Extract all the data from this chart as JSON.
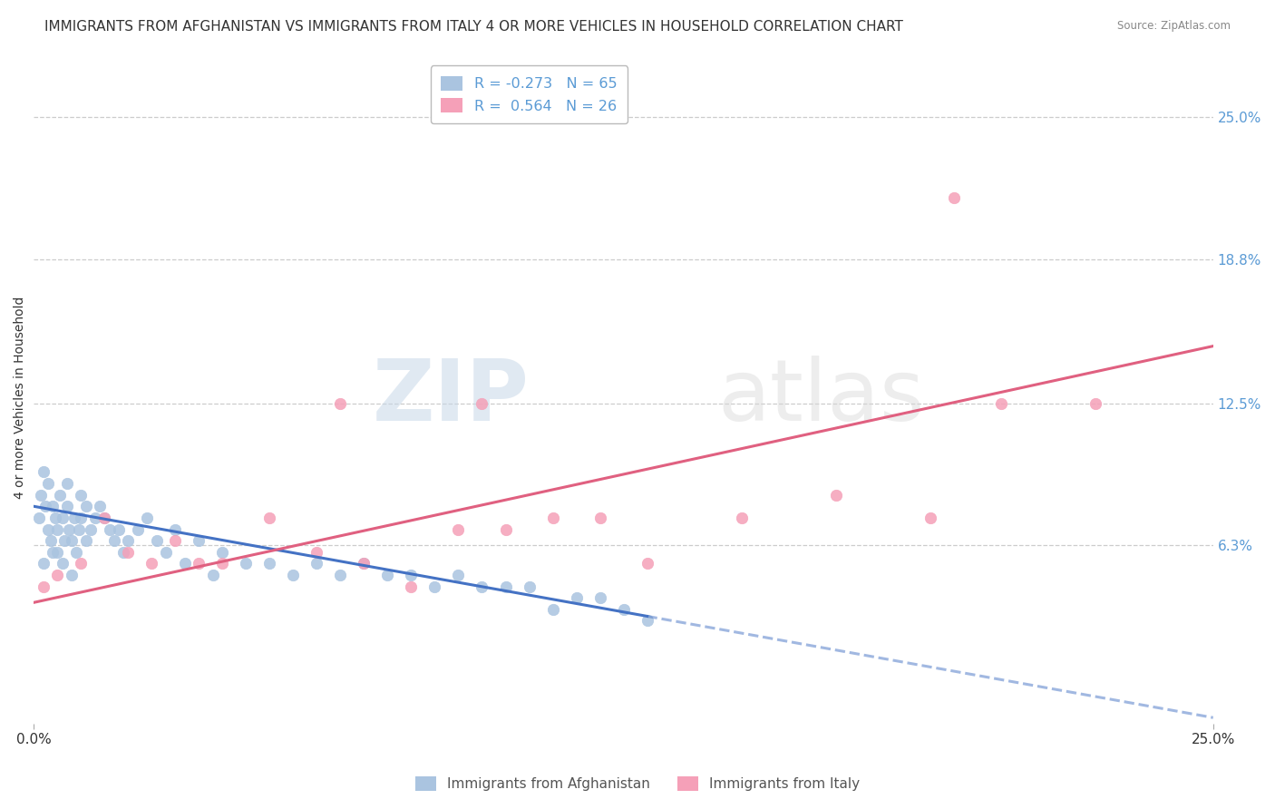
{
  "title": "IMMIGRANTS FROM AFGHANISTAN VS IMMIGRANTS FROM ITALY 4 OR MORE VEHICLES IN HOUSEHOLD CORRELATION CHART",
  "source": "Source: ZipAtlas.com",
  "ylabel": "4 or more Vehicles in Household",
  "xlim": [
    0.0,
    25.0
  ],
  "ylim": [
    -1.5,
    27.0
  ],
  "xticks": [
    0.0,
    25.0
  ],
  "xticklabels": [
    "0.0%",
    "25.0%"
  ],
  "ytick_labels_right": [
    "25.0%",
    "18.8%",
    "12.5%",
    "6.3%"
  ],
  "ytick_values_right": [
    25.0,
    18.8,
    12.5,
    6.3
  ],
  "afghanistan_color": "#aac4e0",
  "italy_color": "#f5a0b8",
  "afghanistan_line_color": "#4472c4",
  "italy_line_color": "#e06080",
  "R_afghanistan": -0.273,
  "N_afghanistan": 65,
  "R_italy": 0.564,
  "N_italy": 26,
  "watermark_zip": "ZIP",
  "watermark_atlas": "atlas",
  "legend_afghanistan": "Immigrants from Afghanistan",
  "legend_italy": "Immigrants from Italy",
  "afghanistan_x": [
    0.1,
    0.15,
    0.2,
    0.25,
    0.3,
    0.3,
    0.35,
    0.4,
    0.45,
    0.5,
    0.5,
    0.55,
    0.6,
    0.65,
    0.7,
    0.7,
    0.75,
    0.8,
    0.85,
    0.9,
    0.95,
    1.0,
    1.0,
    1.1,
    1.1,
    1.2,
    1.3,
    1.4,
    1.5,
    1.6,
    1.7,
    1.8,
    1.9,
    2.0,
    2.2,
    2.4,
    2.6,
    2.8,
    3.0,
    3.2,
    3.5,
    3.8,
    4.0,
    4.5,
    5.0,
    5.5,
    6.0,
    6.5,
    7.0,
    7.5,
    8.0,
    8.5,
    9.0,
    9.5,
    10.0,
    10.5,
    11.0,
    11.5,
    12.0,
    12.5,
    13.0,
    0.2,
    0.4,
    0.6,
    0.8
  ],
  "afghanistan_y": [
    7.5,
    8.5,
    9.5,
    8.0,
    7.0,
    9.0,
    6.5,
    8.0,
    7.5,
    6.0,
    7.0,
    8.5,
    7.5,
    6.5,
    8.0,
    9.0,
    7.0,
    6.5,
    7.5,
    6.0,
    7.0,
    8.5,
    7.5,
    6.5,
    8.0,
    7.0,
    7.5,
    8.0,
    7.5,
    7.0,
    6.5,
    7.0,
    6.0,
    6.5,
    7.0,
    7.5,
    6.5,
    6.0,
    7.0,
    5.5,
    6.5,
    5.0,
    6.0,
    5.5,
    5.5,
    5.0,
    5.5,
    5.0,
    5.5,
    5.0,
    5.0,
    4.5,
    5.0,
    4.5,
    4.5,
    4.5,
    3.5,
    4.0,
    4.0,
    3.5,
    3.0,
    5.5,
    6.0,
    5.5,
    5.0
  ],
  "italy_x": [
    0.2,
    0.5,
    1.0,
    1.5,
    2.0,
    2.5,
    3.0,
    3.5,
    4.0,
    5.0,
    6.0,
    7.0,
    8.0,
    9.0,
    10.0,
    11.0,
    12.0,
    13.0,
    15.0,
    17.0,
    19.0,
    19.5,
    20.5,
    22.5,
    6.5,
    9.5
  ],
  "italy_y": [
    4.5,
    5.0,
    5.5,
    7.5,
    6.0,
    5.5,
    6.5,
    5.5,
    5.5,
    7.5,
    6.0,
    5.5,
    4.5,
    7.0,
    7.0,
    7.5,
    7.5,
    5.5,
    7.5,
    8.5,
    7.5,
    21.5,
    12.5,
    12.5,
    12.5,
    12.5
  ],
  "grid_color": "#cccccc",
  "background_color": "#ffffff",
  "title_fontsize": 11,
  "axis_label_fontsize": 10,
  "tick_fontsize": 11
}
